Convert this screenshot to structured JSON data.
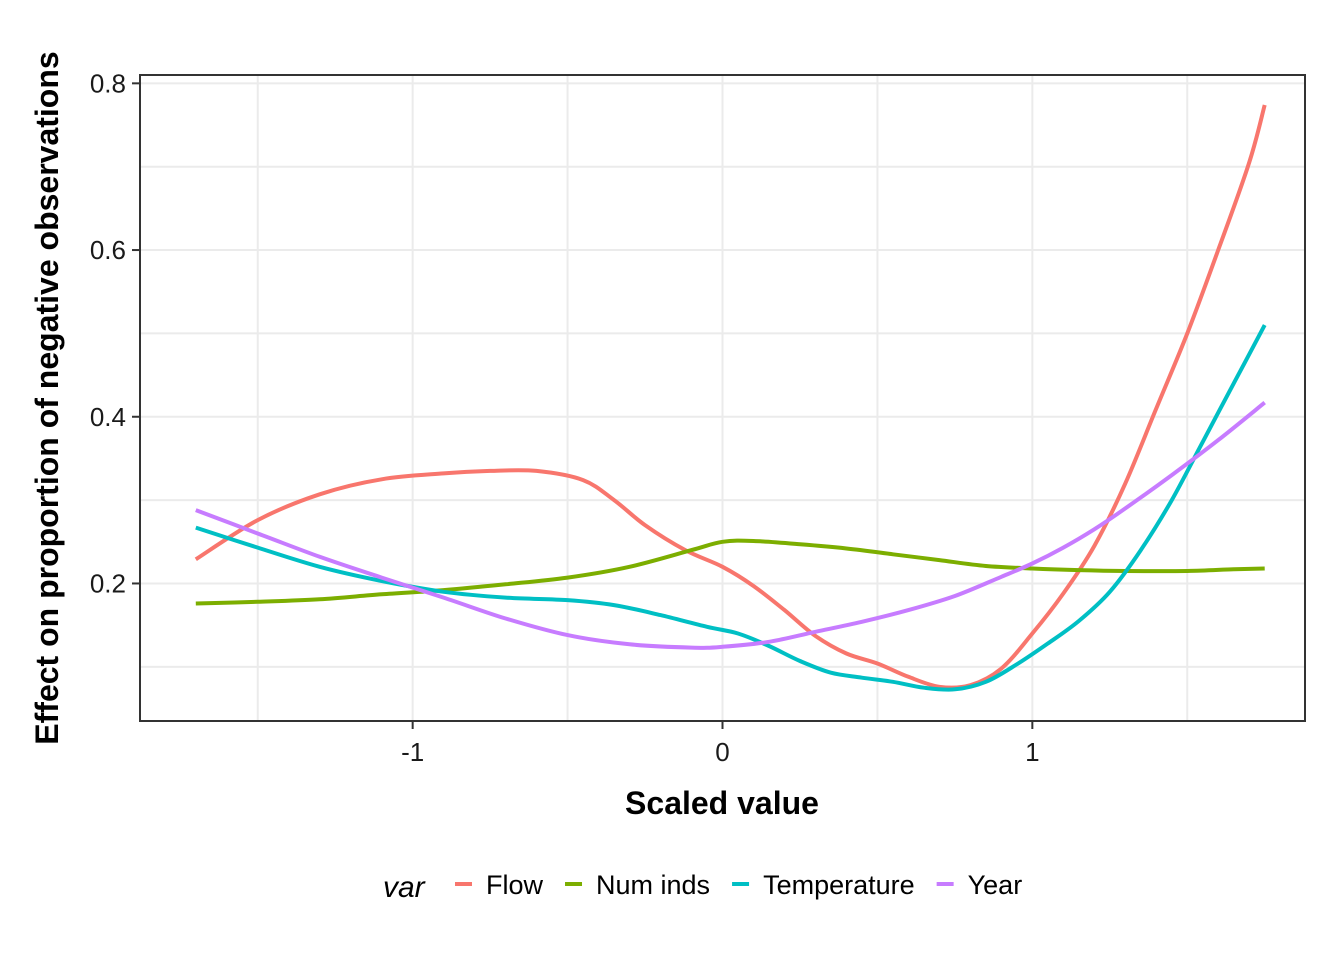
{
  "chart_data": {
    "type": "line",
    "xlabel": "Scaled value",
    "ylabel": "Effect on proportion of negative observations",
    "xlim": [
      -1.88,
      1.88
    ],
    "ylim": [
      0.035,
      0.81
    ],
    "x_ticks": [
      -1,
      0,
      1
    ],
    "x_tick_labels": [
      "-1",
      "0",
      "1"
    ],
    "y_ticks": [
      0.2,
      0.4,
      0.6,
      0.8
    ],
    "y_tick_labels": [
      "0.2",
      "0.4",
      "0.6",
      "0.8"
    ],
    "grid": true,
    "legend_position": "bottom",
    "legend_title": "var",
    "series": [
      {
        "name": "Flow",
        "color": "#F8766D",
        "points": [
          [
            -1.7,
            0.229
          ],
          [
            -1.5,
            0.276
          ],
          [
            -1.3,
            0.307
          ],
          [
            -1.1,
            0.325
          ],
          [
            -0.9,
            0.332
          ],
          [
            -0.75,
            0.335
          ],
          [
            -0.6,
            0.335
          ],
          [
            -0.45,
            0.324
          ],
          [
            -0.35,
            0.3
          ],
          [
            -0.25,
            0.27
          ],
          [
            -0.12,
            0.24
          ],
          [
            0.0,
            0.22
          ],
          [
            0.1,
            0.197
          ],
          [
            0.2,
            0.168
          ],
          [
            0.3,
            0.137
          ],
          [
            0.4,
            0.116
          ],
          [
            0.5,
            0.104
          ],
          [
            0.6,
            0.088
          ],
          [
            0.7,
            0.076
          ],
          [
            0.8,
            0.078
          ],
          [
            0.9,
            0.098
          ],
          [
            1.0,
            0.14
          ],
          [
            1.1,
            0.188
          ],
          [
            1.2,
            0.245
          ],
          [
            1.3,
            0.32
          ],
          [
            1.4,
            0.41
          ],
          [
            1.5,
            0.5
          ],
          [
            1.6,
            0.6
          ],
          [
            1.7,
            0.705
          ],
          [
            1.75,
            0.774
          ]
        ]
      },
      {
        "name": "Num inds",
        "color": "#7CAE00",
        "points": [
          [
            -1.7,
            0.176
          ],
          [
            -1.5,
            0.178
          ],
          [
            -1.3,
            0.181
          ],
          [
            -1.1,
            0.187
          ],
          [
            -0.9,
            0.192
          ],
          [
            -0.7,
            0.199
          ],
          [
            -0.5,
            0.207
          ],
          [
            -0.3,
            0.22
          ],
          [
            -0.1,
            0.24
          ],
          [
            0.0,
            0.25
          ],
          [
            0.1,
            0.251
          ],
          [
            0.25,
            0.247
          ],
          [
            0.4,
            0.242
          ],
          [
            0.55,
            0.235
          ],
          [
            0.7,
            0.228
          ],
          [
            0.85,
            0.221
          ],
          [
            1.0,
            0.218
          ],
          [
            1.15,
            0.216
          ],
          [
            1.3,
            0.215
          ],
          [
            1.5,
            0.215
          ],
          [
            1.65,
            0.217
          ],
          [
            1.75,
            0.218
          ]
        ]
      },
      {
        "name": "Temperature",
        "color": "#00BFC4",
        "points": [
          [
            -1.7,
            0.267
          ],
          [
            -1.5,
            0.243
          ],
          [
            -1.3,
            0.22
          ],
          [
            -1.1,
            0.203
          ],
          [
            -0.9,
            0.19
          ],
          [
            -0.7,
            0.183
          ],
          [
            -0.5,
            0.18
          ],
          [
            -0.35,
            0.174
          ],
          [
            -0.2,
            0.162
          ],
          [
            -0.05,
            0.148
          ],
          [
            0.05,
            0.14
          ],
          [
            0.15,
            0.125
          ],
          [
            0.25,
            0.107
          ],
          [
            0.35,
            0.093
          ],
          [
            0.45,
            0.087
          ],
          [
            0.55,
            0.082
          ],
          [
            0.65,
            0.075
          ],
          [
            0.75,
            0.073
          ],
          [
            0.85,
            0.082
          ],
          [
            0.95,
            0.103
          ],
          [
            1.05,
            0.128
          ],
          [
            1.15,
            0.155
          ],
          [
            1.25,
            0.19
          ],
          [
            1.35,
            0.24
          ],
          [
            1.45,
            0.3
          ],
          [
            1.55,
            0.37
          ],
          [
            1.65,
            0.44
          ],
          [
            1.75,
            0.51
          ]
        ]
      },
      {
        "name": "Year",
        "color": "#C77CFF",
        "points": [
          [
            -1.7,
            0.288
          ],
          [
            -1.5,
            0.26
          ],
          [
            -1.3,
            0.232
          ],
          [
            -1.1,
            0.207
          ],
          [
            -0.9,
            0.183
          ],
          [
            -0.7,
            0.158
          ],
          [
            -0.5,
            0.138
          ],
          [
            -0.3,
            0.127
          ],
          [
            -0.1,
            0.123
          ],
          [
            0.0,
            0.124
          ],
          [
            0.15,
            0.13
          ],
          [
            0.3,
            0.142
          ],
          [
            0.45,
            0.154
          ],
          [
            0.6,
            0.168
          ],
          [
            0.75,
            0.185
          ],
          [
            0.9,
            0.208
          ],
          [
            1.0,
            0.224
          ],
          [
            1.1,
            0.243
          ],
          [
            1.2,
            0.265
          ],
          [
            1.3,
            0.29
          ],
          [
            1.45,
            0.33
          ],
          [
            1.6,
            0.372
          ],
          [
            1.75,
            0.417
          ]
        ]
      }
    ]
  }
}
